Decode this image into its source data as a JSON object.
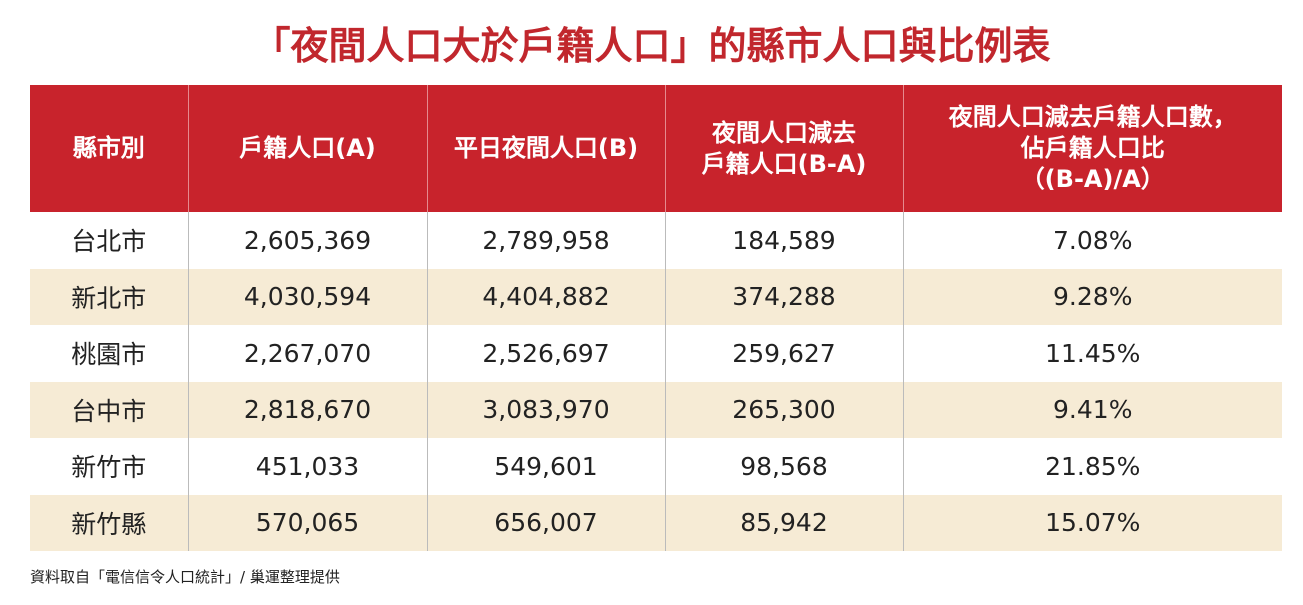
{
  "title": "「夜間人口大於戶籍人口」的縣市人口與比例表",
  "table": {
    "header": [
      [
        "縣市別"
      ],
      [
        "戶籍人口(A)"
      ],
      [
        "平日夜間人口(B)"
      ],
      [
        "夜間人口減去",
        "戶籍人口(B-A)"
      ],
      [
        "夜間人口減去戶籍人口數，",
        "佔戶籍人口比",
        "（(B-A)/A）"
      ]
    ],
    "rows": [
      [
        "台北市",
        "2,605,369",
        "2,789,958",
        "184,589",
        "7.08%"
      ],
      [
        "新北市",
        "4,030,594",
        "4,404,882",
        "374,288",
        "9.28%"
      ],
      [
        "桃園市",
        "2,267,070",
        "2,526,697",
        "259,627",
        "11.45%"
      ],
      [
        "台中市",
        "2,818,670",
        "3,083,970",
        "265,300",
        "9.41%"
      ],
      [
        "新竹市",
        "451,033",
        "549,601",
        "98,568",
        "21.85%"
      ],
      [
        "新竹縣",
        "570,065",
        "656,007",
        "85,942",
        "15.07%"
      ]
    ]
  },
  "source": "資料取自「電信信令人口統計」/ 巢運整理提供"
}
